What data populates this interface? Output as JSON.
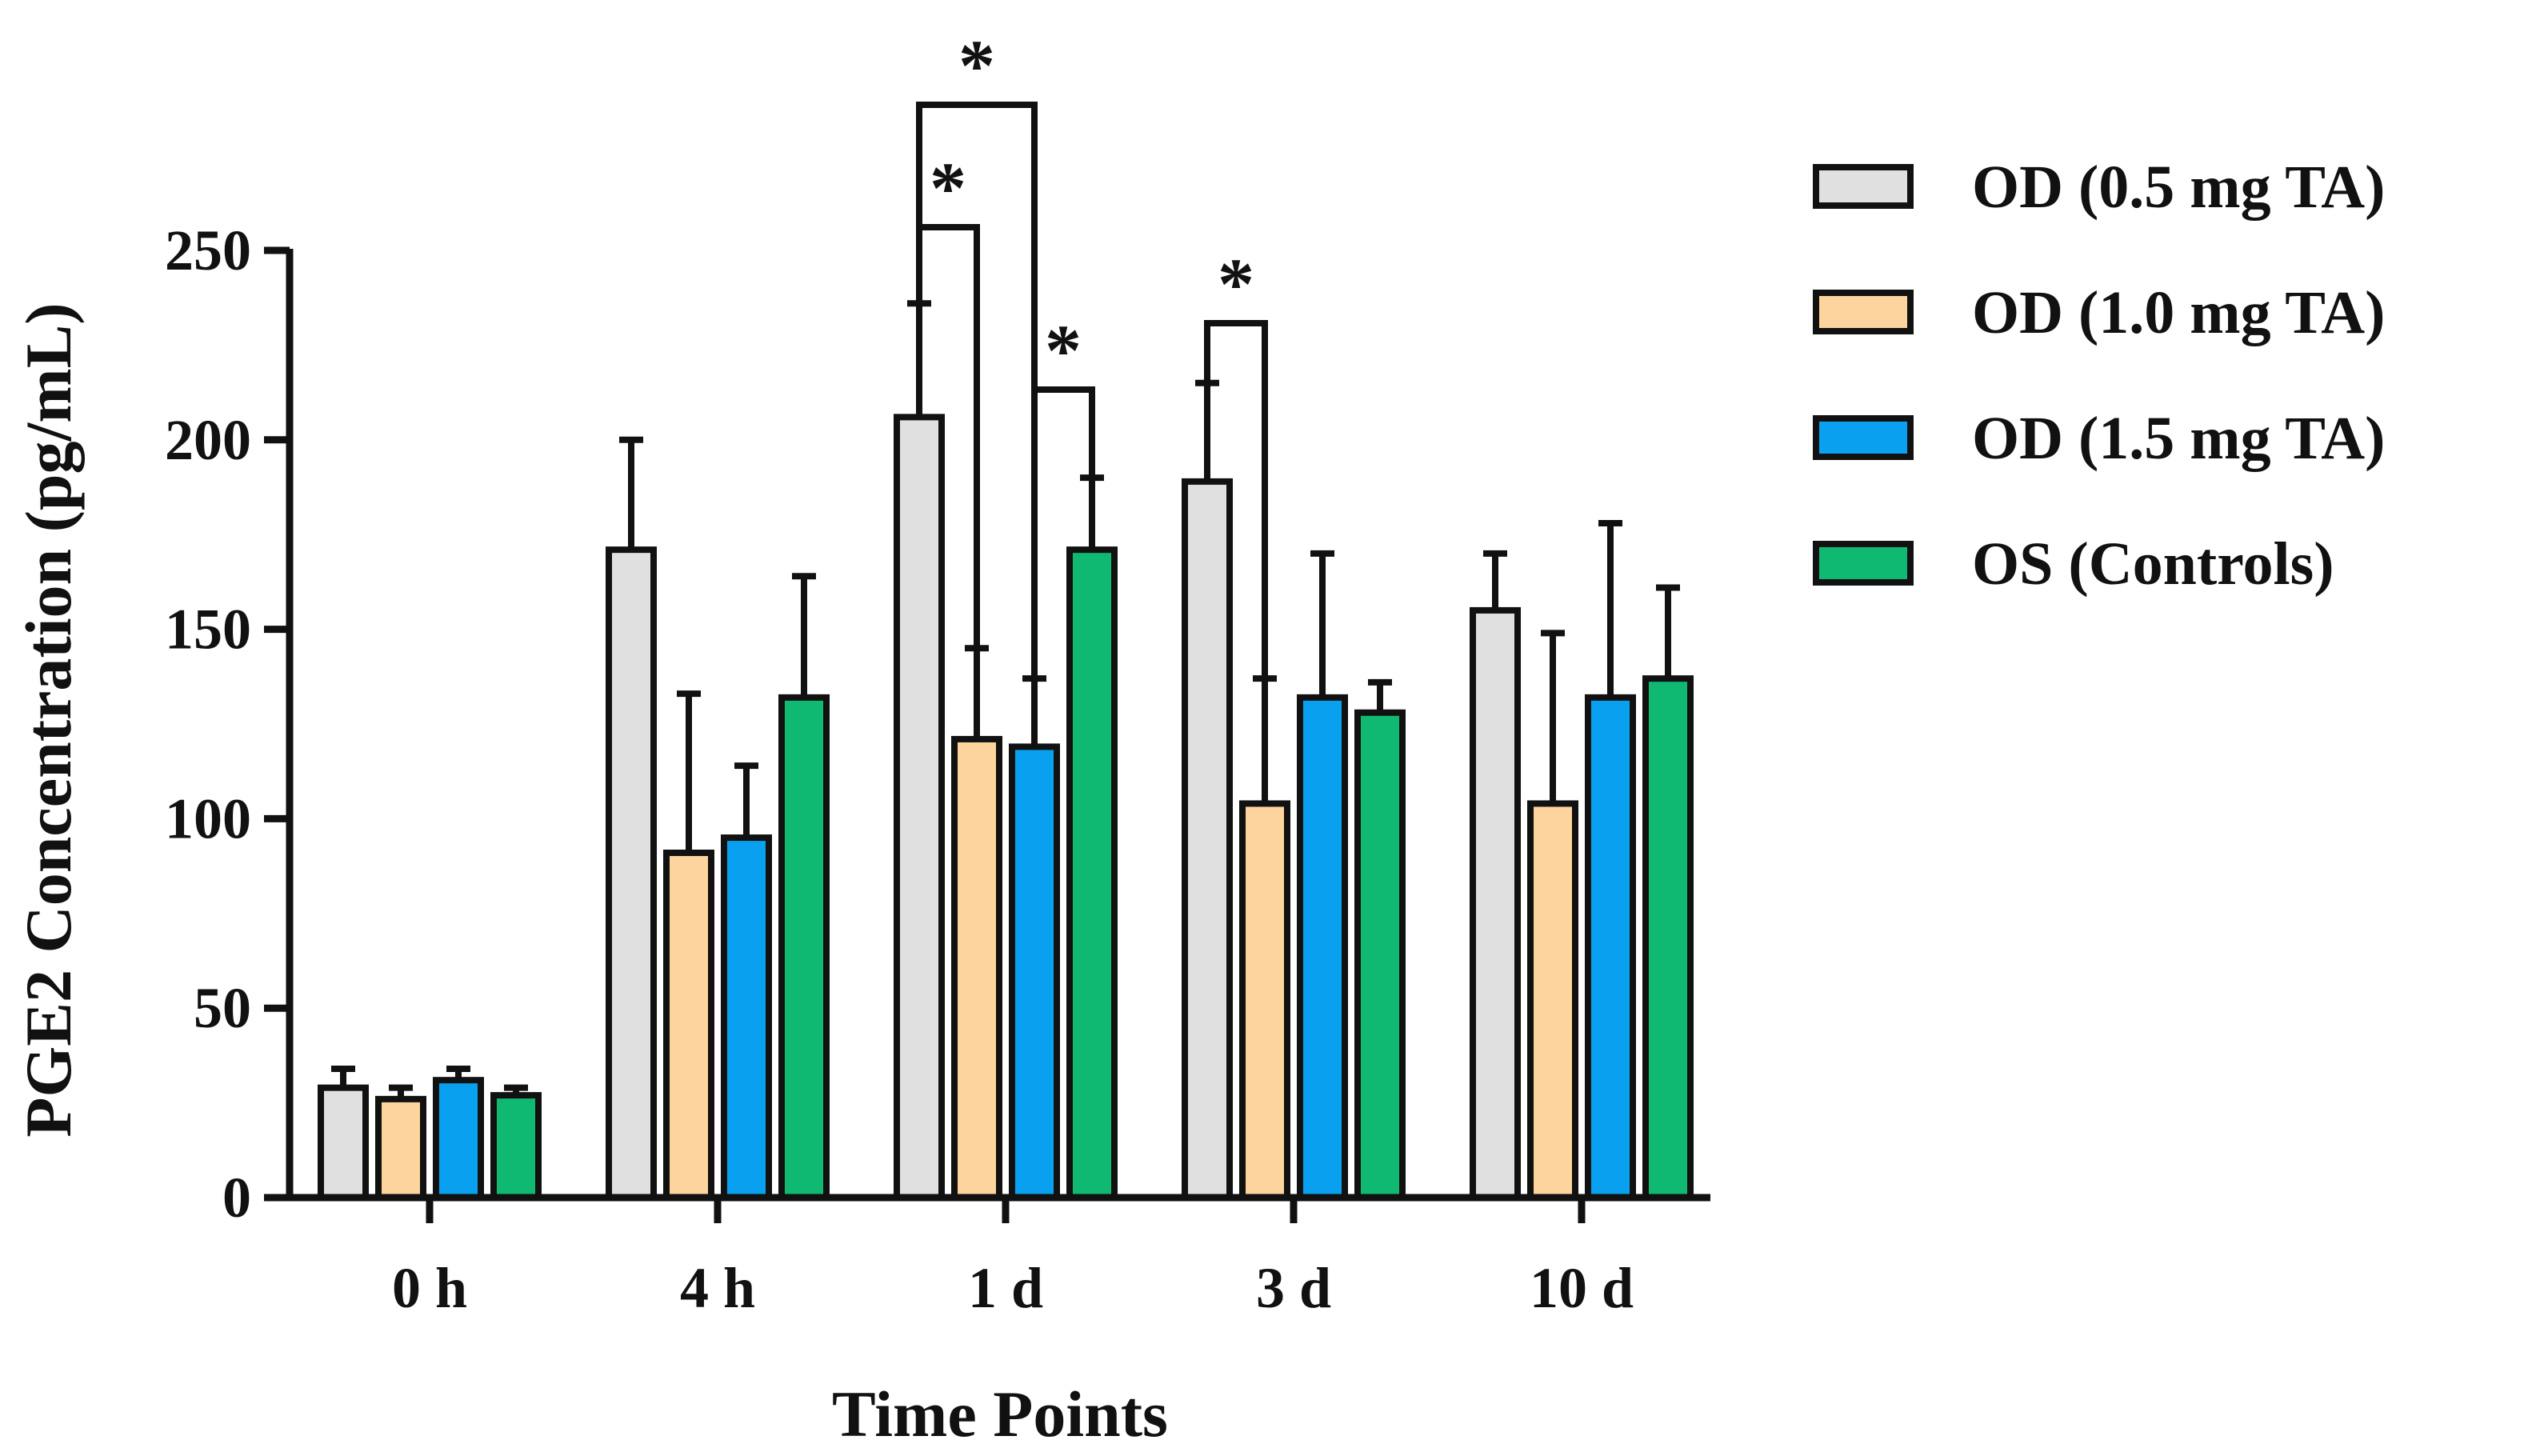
{
  "chart_data": {
    "type": "bar",
    "title": "",
    "xlabel": "Time Points",
    "ylabel": "PGE2 Concentration (pg/mL)",
    "ylim": [
      0,
      250
    ],
    "yticks": [
      "0",
      "50",
      "100",
      "150",
      "200",
      "250"
    ],
    "categories": [
      "0 h",
      "4 h",
      "1 d",
      "3 d",
      "10 d"
    ],
    "series": [
      {
        "name": "OD (0.5 mg TA)",
        "color": "#e0e0e0",
        "values": [
          29,
          171,
          206,
          189,
          155
        ],
        "errors": [
          5,
          29,
          30,
          26,
          15
        ]
      },
      {
        "name": "OD (1.0 mg TA)",
        "color": "#fdd39e",
        "values": [
          26,
          91,
          121,
          104,
          104
        ],
        "errors": [
          3,
          42,
          24,
          33,
          45
        ]
      },
      {
        "name": "OD (1.5 mg TA)",
        "color": "#0aa0f0",
        "values": [
          31,
          95,
          119,
          132,
          132
        ],
        "errors": [
          3,
          19,
          18,
          38,
          46
        ]
      },
      {
        "name": "OS (Controls)",
        "color": "#10b972",
        "values": [
          27,
          132,
          171,
          128,
          137
        ],
        "errors": [
          2,
          32,
          19,
          8,
          24
        ]
      }
    ],
    "significance": [
      {
        "category": "1 d",
        "from": "OD (0.5 mg TA)",
        "to": "OD (1.0 mg TA)",
        "label": "*"
      },
      {
        "category": "1 d",
        "from": "OD (0.5 mg TA)",
        "to": "OD (1.5 mg TA)",
        "label": "*"
      },
      {
        "category": "1 d",
        "from": "OD (1.5 mg TA)",
        "to": "OS (Controls)",
        "label": "*"
      },
      {
        "category": "3 d",
        "from": "OD (0.5 mg TA)",
        "to": "OD (1.0 mg TA)",
        "label": "*"
      }
    ],
    "legend_position": "right"
  }
}
